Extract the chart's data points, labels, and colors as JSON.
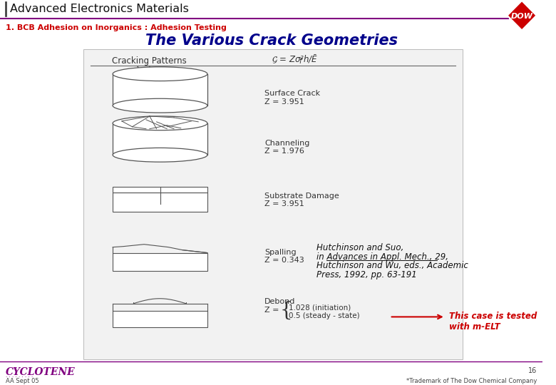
{
  "title": "Advanced Electronics Materials",
  "subtitle": "1. BCB Adhesion on Inorganics : Adhesion Testing",
  "slide_title": "The Various Crack Geometries",
  "bg_color": "#ffffff",
  "header_line_color": "#800080",
  "subtitle_color": "#cc0000",
  "slide_title_color": "#00008B",
  "footer_left": "AA Sept 05",
  "footer_right": "*Trademark of The Dow Chemical Company",
  "page_number": "16",
  "cyclotene_color": "#800080",
  "dow_red": "#cc0000",
  "red_note": "This case is tested\nwith m-ELT",
  "table_header_left": "Cracking Patterns",
  "content_bg": "#f0f0f0",
  "content_border": "#aaaaaa",
  "draw_color": "#555555"
}
